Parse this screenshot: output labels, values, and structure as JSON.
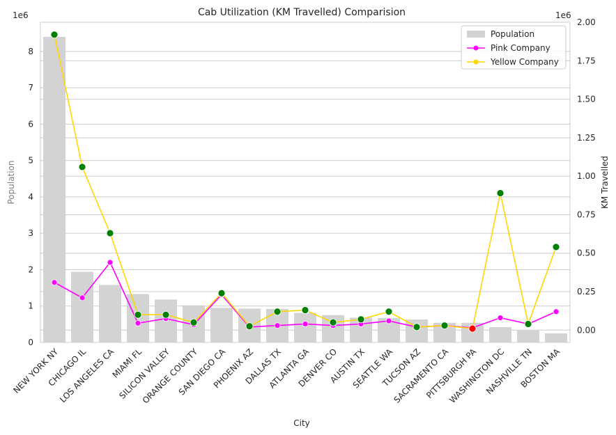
{
  "chart_data": {
    "type": "bar",
    "title": "Cab Utilization (KM Travelled) Comparision",
    "xlabel": "City",
    "ylabel": "Population",
    "y2label": "KM Travelled",
    "y_multiplier": "1e6",
    "y2_multiplier": "1e6",
    "ylim": [
      0,
      8.8
    ],
    "y2lim": [
      -0.08,
      2.0
    ],
    "yticks": [
      0,
      1,
      2,
      3,
      4,
      5,
      6,
      7,
      8
    ],
    "y2ticks": [
      0.0,
      0.25,
      0.5,
      0.75,
      1.0,
      1.25,
      1.5,
      1.75,
      2.0
    ],
    "y2tick_labels": [
      "0.00",
      "0.25",
      "0.50",
      "0.75",
      "1.00",
      "1.25",
      "1.50",
      "1.75",
      "2.00"
    ],
    "grid": true,
    "legend_position": "top-right",
    "categories": [
      "NEW YORK NY",
      "CHICAGO IL",
      "LOS ANGELES CA",
      "MIAMI FL",
      "SILICON VALLEY",
      "ORANGE COUNTY",
      "SAN DIEGO CA",
      "PHOENIX AZ",
      "DALLAS TX",
      "ATLANTA GA",
      "DENVER CO",
      "AUSTIN TX",
      "SEATTLE WA",
      "TUCSON AZ",
      "SACRAMENTO CA",
      "PITTSBURGH PA",
      "WASHINGTON DC",
      "NASHVILLE TN",
      "BOSTON MA"
    ],
    "series": [
      {
        "name": "Population",
        "kind": "bar",
        "axis": "left",
        "color": "#d3d3d3",
        "values": [
          8.4,
          1.94,
          1.58,
          1.33,
          1.18,
          1.02,
          0.95,
          0.93,
          0.92,
          0.81,
          0.75,
          0.68,
          0.67,
          0.63,
          0.54,
          0.54,
          0.42,
          0.33,
          0.25
        ]
      },
      {
        "name": "Pink Company",
        "kind": "line",
        "axis": "right",
        "color": "#ff00ff",
        "values": [
          0.31,
          0.21,
          0.44,
          0.045,
          0.075,
          0.035,
          0.23,
          0.02,
          0.03,
          0.04,
          0.03,
          0.04,
          0.06,
          0.02,
          0.03,
          0.015,
          0.08,
          0.04,
          0.12
        ]
      },
      {
        "name": "Yellow Company",
        "kind": "line",
        "axis": "right",
        "color": "#ffd700",
        "values": [
          1.92,
          1.06,
          0.63,
          0.1,
          0.1,
          0.05,
          0.24,
          0.025,
          0.12,
          0.13,
          0.05,
          0.07,
          0.12,
          0.02,
          0.03,
          0.01,
          0.89,
          0.04,
          0.54
        ]
      }
    ],
    "marker_highlight": {
      "higher_color": "#008000",
      "lower_color": "#ff0000"
    }
  }
}
